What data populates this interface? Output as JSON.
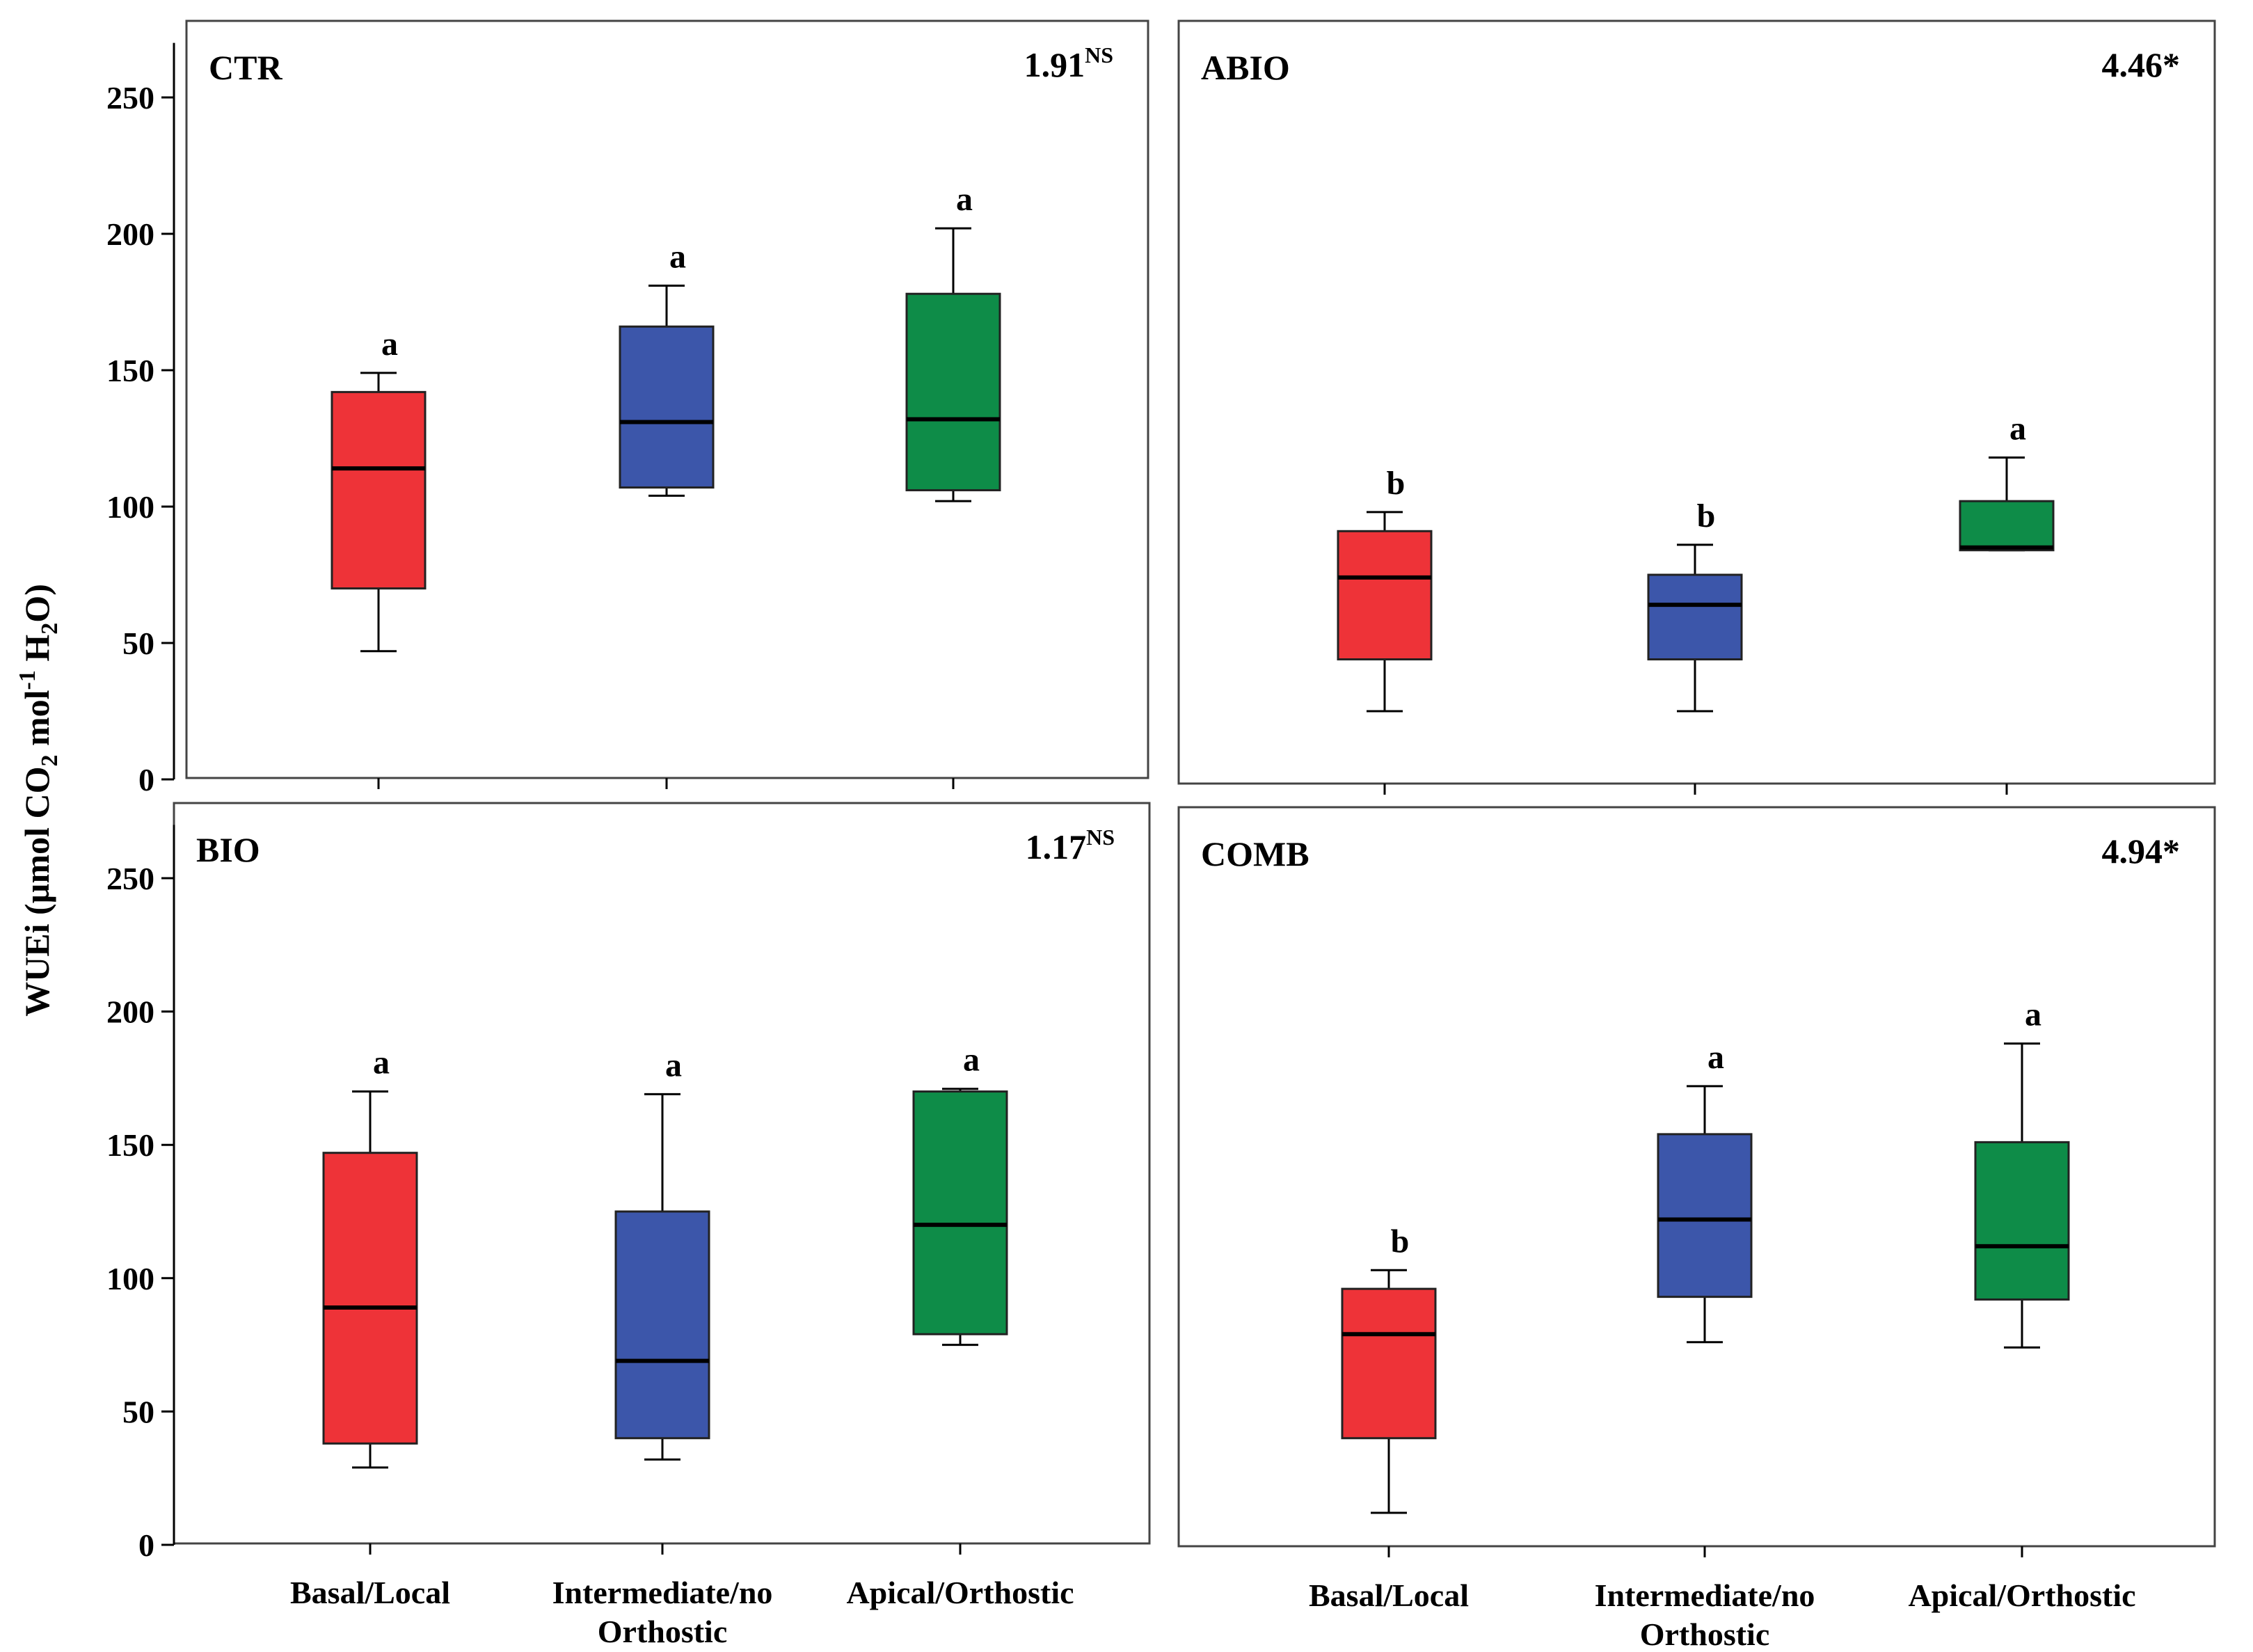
{
  "figure": {
    "y_axis_label_main": "WUEi (µmol CO",
    "y_axis_label_sub1": "2",
    "y_axis_label_mid": " mol",
    "y_axis_label_sup": "-1",
    "y_axis_label_mid2": " H",
    "y_axis_label_sub2": "2",
    "y_axis_label_end": "O)",
    "colors": {
      "Basal/Local": "#ee3338",
      "Intermediate/no Orthostic": "#3c56aa",
      "Apical/Orthostic": "#0e8c48"
    }
  },
  "chart_data": [
    {
      "type": "boxplot",
      "panel": "CTR",
      "title": "CTR",
      "stat_value": "1.91",
      "stat_suffix": "NS",
      "stat_superscript": true,
      "ylim": [
        0,
        270
      ],
      "yticks": [
        "0",
        "50",
        "100",
        "150",
        "200",
        "250"
      ],
      "show_y_ticks": true,
      "show_x_labels": false,
      "categories": [
        "Basal/Local",
        "Intermediate/no Orthostic",
        "Apical/Orthostic"
      ],
      "boxes": [
        {
          "category": "Basal/Local",
          "whisker_low": 47,
          "q1": 70,
          "median": 114,
          "q3": 142,
          "whisker_high": 149,
          "letter": "a"
        },
        {
          "category": "Intermediate/no Orthostic",
          "whisker_low": 104,
          "q1": 107,
          "median": 131,
          "q3": 166,
          "whisker_high": 181,
          "letter": "a"
        },
        {
          "category": "Apical/Orthostic",
          "whisker_low": 102,
          "q1": 106,
          "median": 132,
          "q3": 178,
          "whisker_high": 202,
          "letter": "a"
        }
      ]
    },
    {
      "type": "boxplot",
      "panel": "ABIO",
      "title": "ABIO",
      "stat_value": "4.46*",
      "stat_suffix": "",
      "stat_superscript": false,
      "ylim": [
        0,
        270
      ],
      "yticks": [],
      "show_y_ticks": false,
      "show_x_labels": false,
      "categories": [
        "Basal/Local",
        "Intermediate/no Orthostic",
        "Apical/Orthostic"
      ],
      "boxes": [
        {
          "category": "Basal/Local",
          "whisker_low": 25,
          "q1": 44,
          "median": 74,
          "q3": 91,
          "whisker_high": 98,
          "letter": "b"
        },
        {
          "category": "Intermediate/no Orthostic",
          "whisker_low": 25,
          "q1": 44,
          "median": 64,
          "q3": 75,
          "whisker_high": 86,
          "letter": "b"
        },
        {
          "category": "Apical/Orthostic",
          "whisker_low": 84,
          "q1": 84,
          "median": 85,
          "q3": 102,
          "whisker_high": 118,
          "letter": "a"
        }
      ]
    },
    {
      "type": "boxplot",
      "panel": "BIO",
      "title": "BIO",
      "stat_value": "1.17",
      "stat_suffix": "NS",
      "stat_superscript": true,
      "ylim": [
        0,
        270
      ],
      "yticks": [
        "0",
        "50",
        "100",
        "150",
        "200",
        "250"
      ],
      "show_y_ticks": true,
      "show_x_labels": true,
      "categories": [
        "Basal/Local",
        "Intermediate/no Orthostic",
        "Apical/Orthostic"
      ],
      "x_labels": [
        [
          "Basal/Local"
        ],
        [
          "Intermediate/no",
          "Orthostic"
        ],
        [
          "Apical/Orthostic"
        ]
      ],
      "boxes": [
        {
          "category": "Basal/Local",
          "whisker_low": 29,
          "q1": 38,
          "median": 89,
          "q3": 147,
          "whisker_high": 170,
          "letter": "a"
        },
        {
          "category": "Intermediate/no Orthostic",
          "whisker_low": 32,
          "q1": 40,
          "median": 69,
          "q3": 125,
          "whisker_high": 169,
          "letter": "a"
        },
        {
          "category": "Apical/Orthostic",
          "whisker_low": 75,
          "q1": 79,
          "median": 120,
          "q3": 170,
          "whisker_high": 171,
          "letter": "a"
        }
      ]
    },
    {
      "type": "boxplot",
      "panel": "COMB",
      "title": "COMB",
      "stat_value": "4.94*",
      "stat_suffix": "",
      "stat_superscript": false,
      "ylim": [
        0,
        270
      ],
      "yticks": [],
      "show_y_ticks": false,
      "show_x_labels": true,
      "categories": [
        "Basal/Local",
        "Intermediate/no Orthostic",
        "Apical/Orthostic"
      ],
      "x_labels": [
        [
          "Basal/Local"
        ],
        [
          "Intermediate/no",
          "Orthostic"
        ],
        [
          "Apical/Orthostic"
        ]
      ],
      "boxes": [
        {
          "category": "Basal/Local",
          "whisker_low": 12,
          "q1": 40,
          "median": 79,
          "q3": 96,
          "whisker_high": 103,
          "letter": "b"
        },
        {
          "category": "Intermediate/no Orthostic",
          "whisker_low": 76,
          "q1": 93,
          "median": 122,
          "q3": 154,
          "whisker_high": 172,
          "letter": "a"
        },
        {
          "category": "Apical/Orthostic",
          "whisker_low": 74,
          "q1": 92,
          "median": 112,
          "q3": 151,
          "whisker_high": 188,
          "letter": "a"
        }
      ]
    }
  ]
}
